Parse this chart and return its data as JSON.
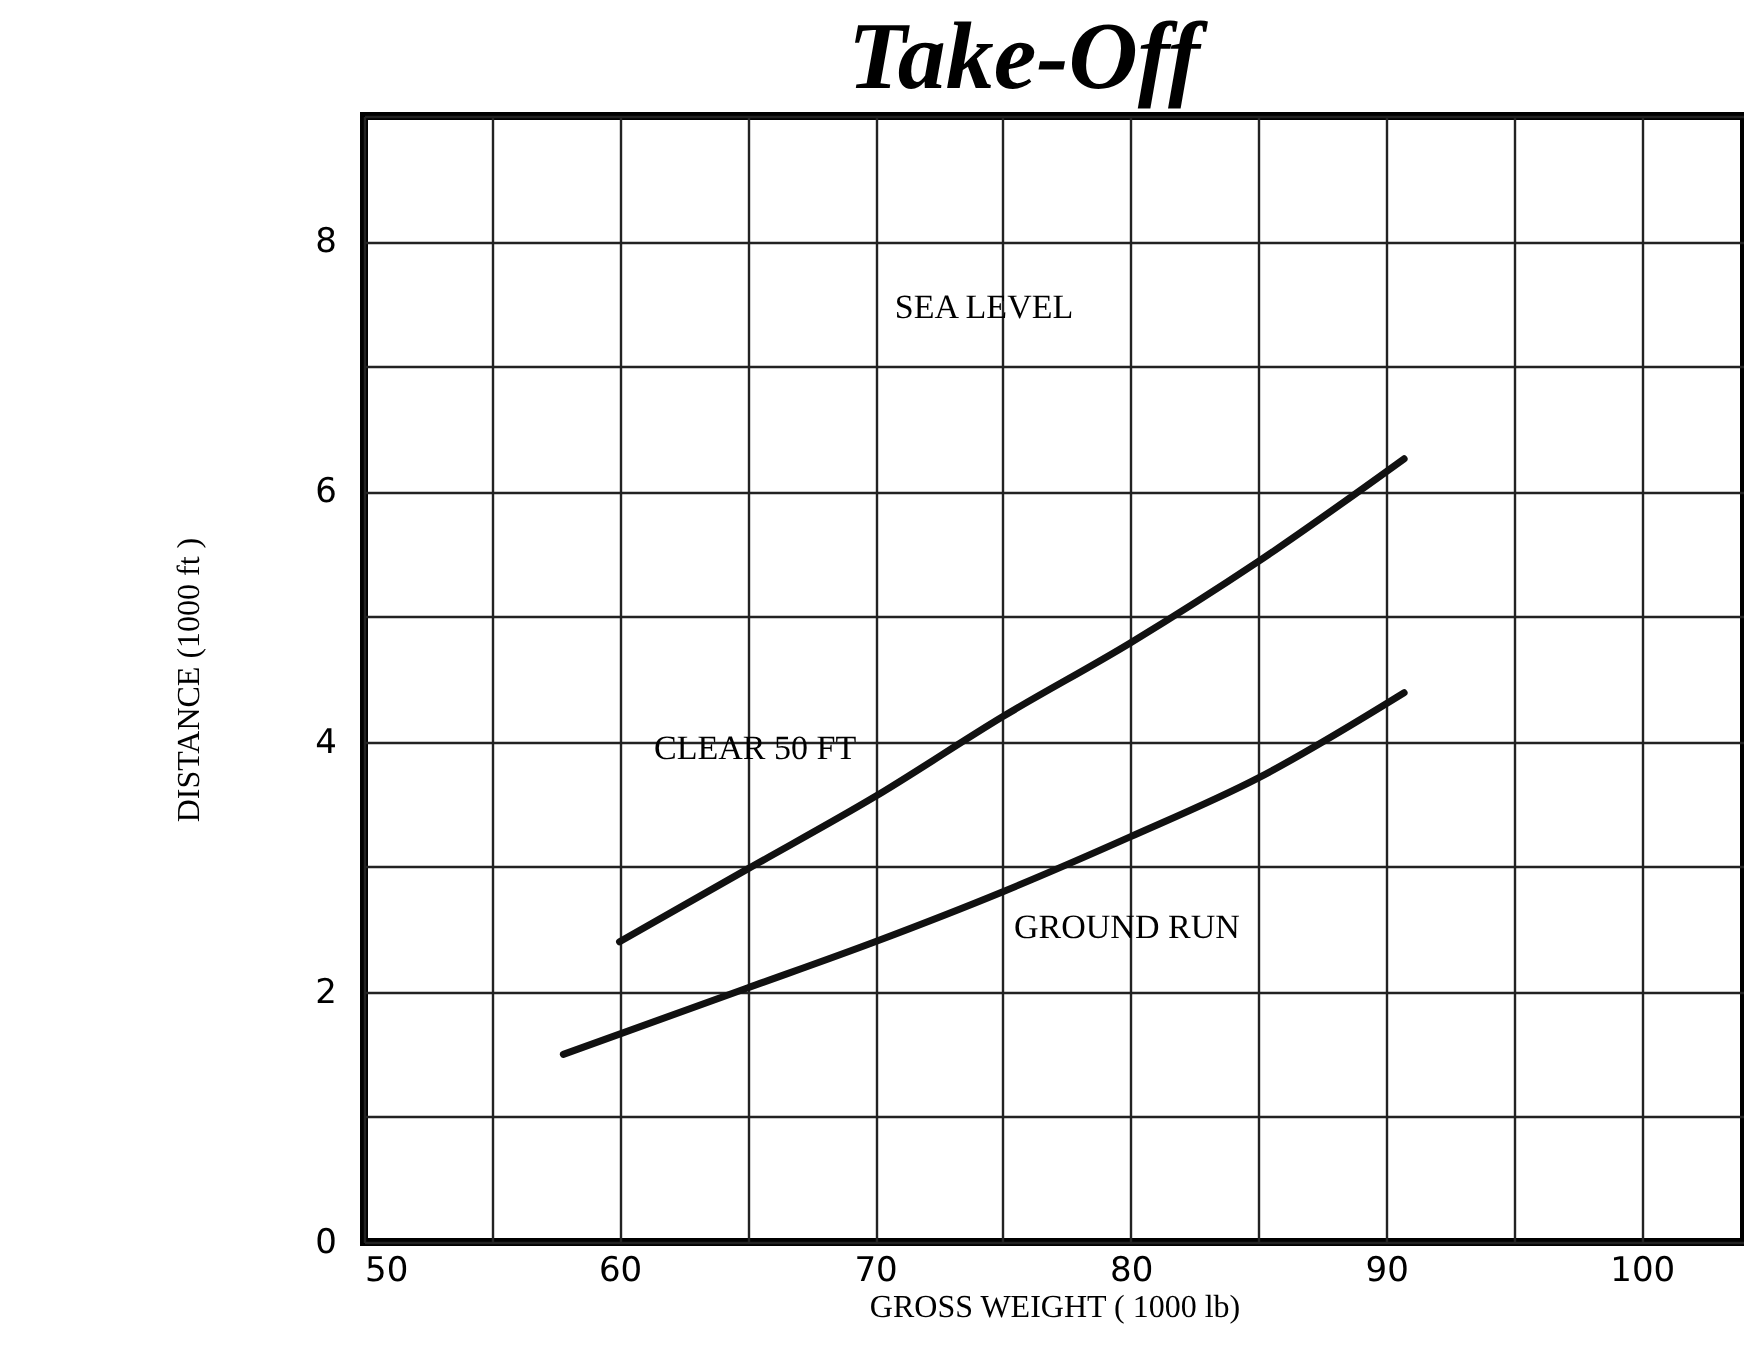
{
  "chart_data": {
    "type": "line",
    "title": "Take-Off",
    "xlabel": "GROSS WEIGHT ( 1000 lb)",
    "ylabel": "DISTANCE (1000 ft )",
    "annotations": [
      "SEA LEVEL"
    ],
    "series": [
      {
        "name": "CLEAR 50 FT",
        "color": "#111111",
        "x": [
          60,
          65,
          70,
          75,
          80,
          85,
          90.7
        ],
        "values": [
          2.4,
          2.98,
          3.56,
          4.2,
          4.79,
          5.44,
          6.26
        ]
      },
      {
        "name": "GROUND RUN",
        "color": "#111111",
        "x": [
          57.8,
          65,
          70,
          75,
          80,
          85,
          90.7
        ],
        "values": [
          1.5,
          2.03,
          2.4,
          2.8,
          3.24,
          3.71,
          4.39
        ]
      }
    ],
    "xlim": [
      50,
      104
    ],
    "ylim": [
      0,
      9
    ],
    "xticks": [
      50,
      {
        "value": 55,
        "label": null
      },
      60,
      {
        "value": 65,
        "label": null
      },
      70,
      {
        "value": 75,
        "label": null
      },
      80,
      {
        "value": 85,
        "label": null
      },
      90,
      {
        "value": 95,
        "label": null
      },
      100
    ],
    "yticks": [
      0,
      {
        "value": 1,
        "label": null
      },
      2,
      {
        "value": 3,
        "label": null
      },
      4,
      {
        "value": 5,
        "label": null
      },
      6,
      {
        "value": 7,
        "label": null
      },
      8,
      {
        "value": 9,
        "label": null
      }
    ],
    "grid": true,
    "line_style": "solid",
    "marker": "none"
  }
}
